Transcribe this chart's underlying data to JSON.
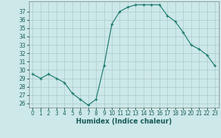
{
  "x": [
    0,
    1,
    2,
    3,
    4,
    5,
    6,
    7,
    8,
    9,
    10,
    11,
    12,
    13,
    14,
    15,
    16,
    17,
    18,
    19,
    20,
    21,
    22,
    23
  ],
  "y": [
    29.5,
    29.0,
    29.5,
    29.0,
    28.5,
    27.2,
    26.5,
    25.8,
    26.5,
    30.5,
    35.5,
    37.0,
    37.5,
    37.8,
    37.8,
    37.8,
    37.8,
    36.5,
    35.8,
    34.5,
    33.0,
    32.5,
    31.8,
    30.5
  ],
  "xlabel": "Humidex (Indice chaleur)",
  "ylim": [
    25.5,
    38.2
  ],
  "xlim": [
    -0.5,
    23.5
  ],
  "yticks": [
    26,
    27,
    28,
    29,
    30,
    31,
    32,
    33,
    34,
    35,
    36,
    37
  ],
  "xticks": [
    0,
    1,
    2,
    3,
    4,
    5,
    6,
    7,
    8,
    9,
    10,
    11,
    12,
    13,
    14,
    15,
    16,
    17,
    18,
    19,
    20,
    21,
    22,
    23
  ],
  "line_color": "#1a7a6e",
  "marker": "+",
  "bg_color": "#cce8e8",
  "grid_color": "#aac8c8",
  "label_color": "#1a5a5a",
  "tick_fontsize": 5.5,
  "xlabel_fontsize": 7
}
